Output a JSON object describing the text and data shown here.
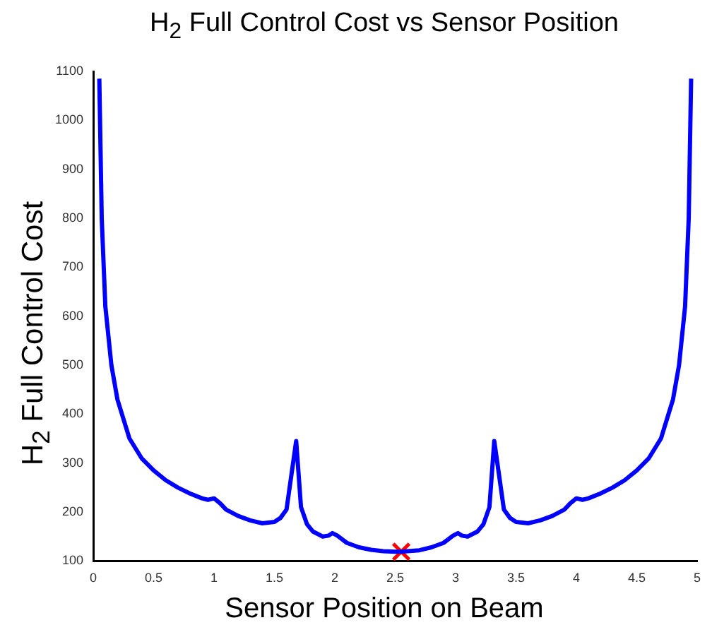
{
  "chart_data": {
    "type": "line",
    "title": "H$_{2}$ Full Control Cost vs Sensor Position",
    "xlabel": "Sensor Position on Beam",
    "ylabel": "H$_{2}$ Full Control Cost",
    "xlim": [
      0,
      5
    ],
    "xticks": [
      0,
      0.5,
      1,
      1.5,
      2,
      2.5,
      3,
      3.5,
      4,
      4.5,
      5
    ],
    "ylim": [
      100,
      1100
    ],
    "yticks": [
      100,
      200,
      300,
      400,
      500,
      600,
      700,
      800,
      900,
      1000,
      1100
    ],
    "grid": false,
    "legend": false,
    "series": [
      {
        "type": "line",
        "color": "#0000ff",
        "marker": "none",
        "line_style": "solid",
        "x": [
          0.05,
          0.07,
          0.1,
          0.15,
          0.2,
          0.3,
          0.4,
          0.5,
          0.6,
          0.7,
          0.8,
          0.9,
          0.95,
          1.0,
          1.05,
          1.1,
          1.2,
          1.3,
          1.4,
          1.5,
          1.55,
          1.6,
          1.68,
          1.72,
          1.77,
          1.82,
          1.9,
          1.95,
          1.98,
          2.02,
          2.1,
          2.2,
          2.3,
          2.4,
          2.5,
          2.55,
          2.6,
          2.7,
          2.8,
          2.9,
          2.98,
          3.02,
          3.05,
          3.1,
          3.18,
          3.23,
          3.28,
          3.32,
          3.4,
          3.45,
          3.5,
          3.6,
          3.7,
          3.8,
          3.9,
          3.95,
          4.0,
          4.05,
          4.1,
          4.2,
          4.3,
          4.4,
          4.5,
          4.6,
          4.7,
          4.8,
          4.85,
          4.9,
          4.93,
          4.95
        ],
        "values": [
          1085,
          800,
          620,
          500,
          430,
          350,
          310,
          285,
          265,
          250,
          238,
          228,
          225,
          228,
          218,
          205,
          192,
          183,
          177,
          180,
          188,
          205,
          345,
          210,
          175,
          160,
          150,
          152,
          157,
          152,
          137,
          128,
          123,
          120,
          119,
          119,
          120,
          122,
          128,
          137,
          152,
          157,
          152,
          150,
          160,
          175,
          210,
          345,
          205,
          188,
          180,
          177,
          183,
          192,
          205,
          218,
          228,
          225,
          228,
          238,
          250,
          265,
          285,
          310,
          350,
          430,
          500,
          620,
          800,
          1085
        ]
      },
      {
        "type": "scatter",
        "color": "#ff0000",
        "marker": "cross",
        "x": [
          2.55
        ],
        "values": [
          119
        ]
      }
    ]
  }
}
